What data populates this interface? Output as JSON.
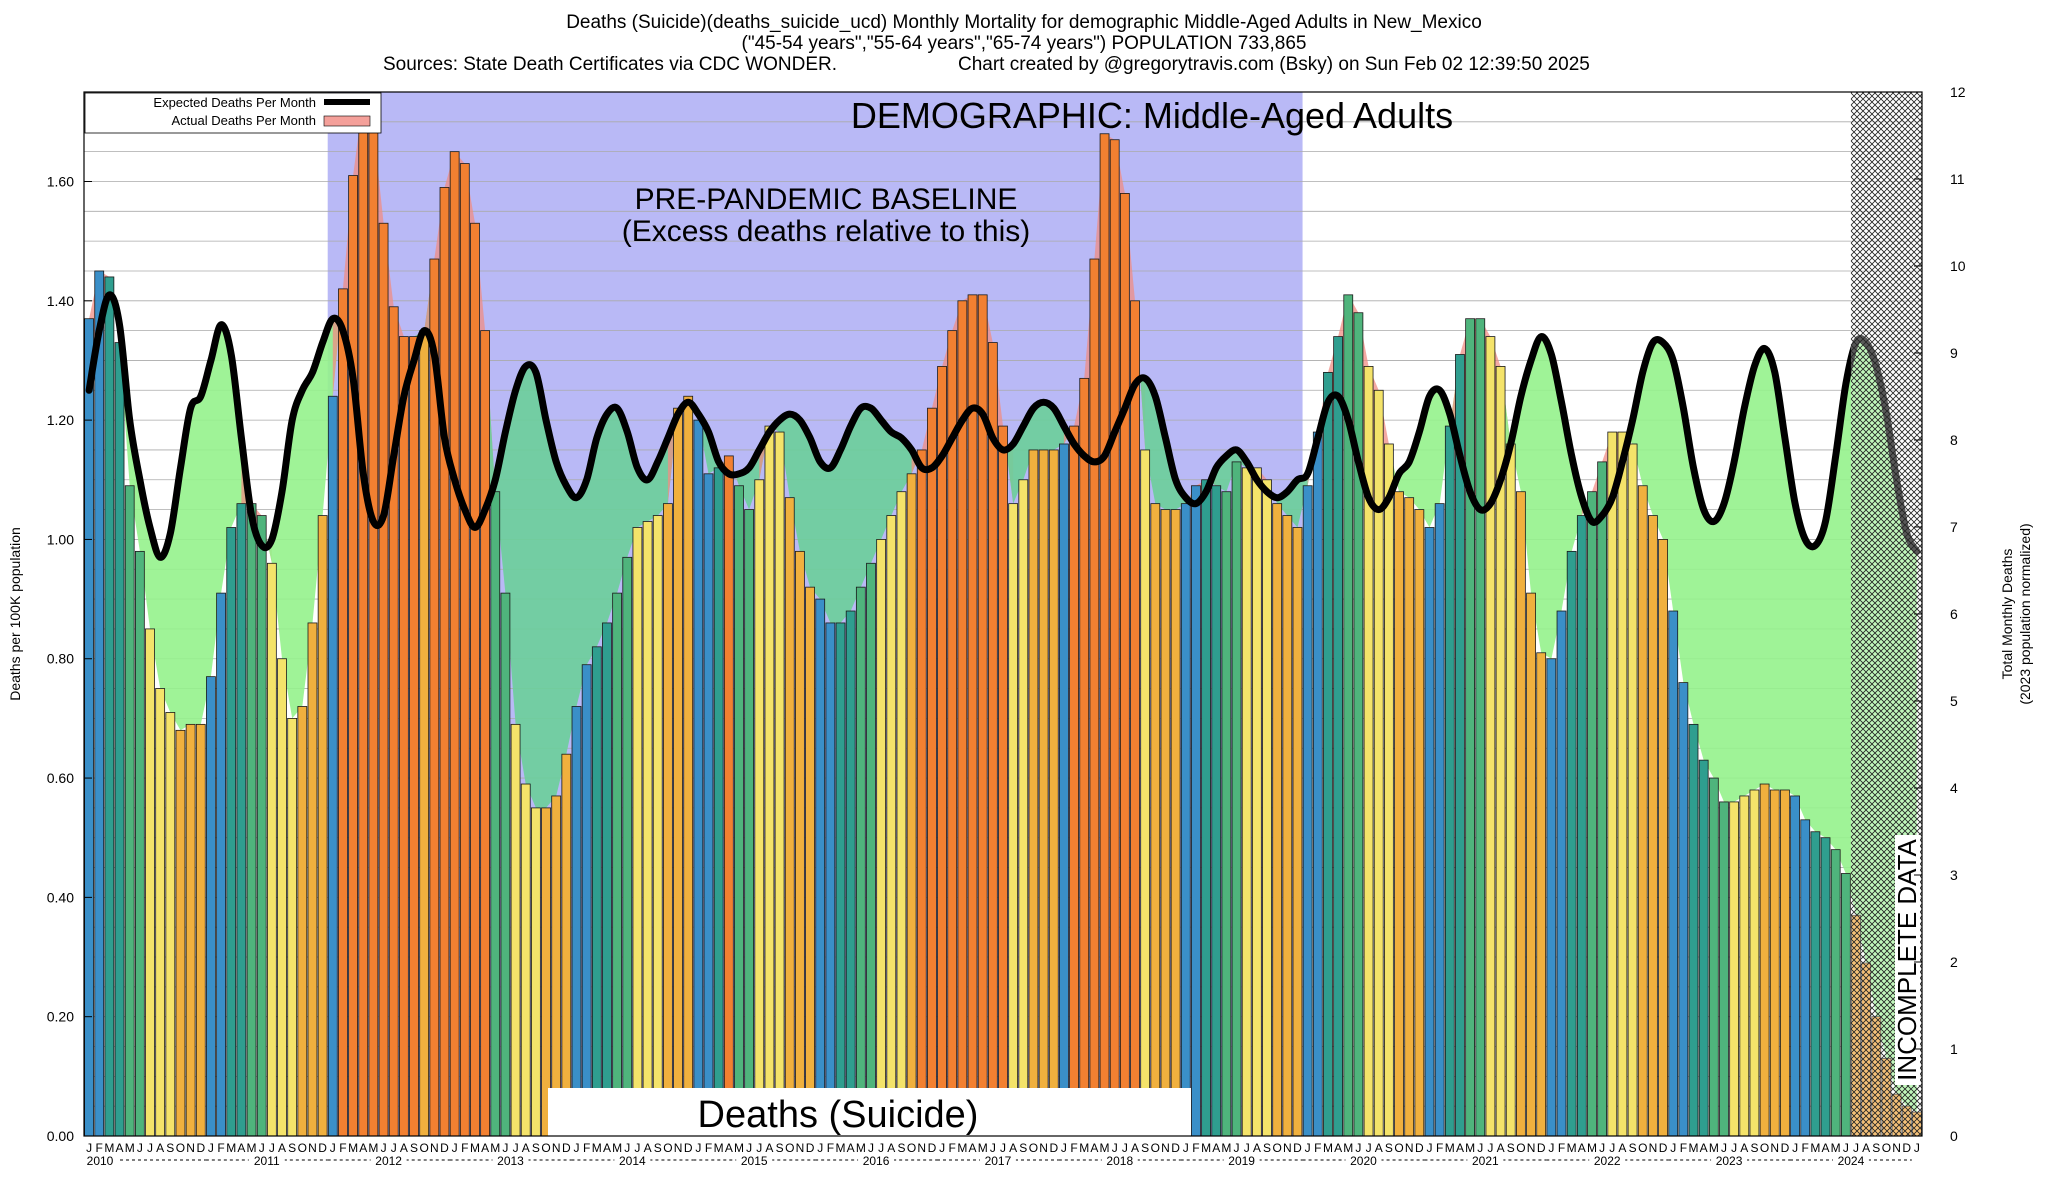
{
  "header": {
    "line1": "Deaths (Suicide)(deaths_suicide_ucd) Monthly Mortality for demographic Middle-Aged Adults in New_Mexico",
    "line2": "(\"45-54 years\",\"55-64 years\",\"65-74 years\") POPULATION 733,865",
    "line3_left": "Sources: State Death Certificates via CDC WONDER.",
    "line3_right": "Chart created by @gregorytravis.com (Bsky) on Sun Feb 02 12:39:50 2025"
  },
  "chart_data": {
    "type": "bar",
    "title": "Deaths (Suicide)(deaths_suicide_ucd) Monthly Mortality for demographic Middle-Aged Adults in New_Mexico",
    "ylabel": "Deaths per 100K population",
    "y2label": "Total Monthly Deaths",
    "y2label_sub": "(2023 population normalized)",
    "ylim": [
      0,
      1.75
    ],
    "y2lim": [
      0,
      12
    ],
    "yticks": [
      "0.00",
      "0.20",
      "0.40",
      "0.60",
      "0.80",
      "1.00",
      "1.20",
      "1.40",
      "1.60"
    ],
    "y2ticks": [
      "0",
      "1",
      "2",
      "3",
      "4",
      "5",
      "6",
      "7",
      "8",
      "9",
      "10",
      "11",
      "12"
    ],
    "month_letters": [
      "J",
      "F",
      "M",
      "A",
      "M",
      "J",
      "J",
      "A",
      "S",
      "O",
      "N",
      "D"
    ],
    "years": [
      "2010",
      "2011",
      "2012",
      "2013",
      "2014",
      "2015",
      "2016",
      "2017",
      "2018",
      "2019",
      "2020",
      "2021",
      "2022",
      "2023",
      "2024"
    ],
    "grid": true,
    "legend_position": "top-left",
    "legend": [
      {
        "label": "Expected Deaths Per Month",
        "color": "#000000"
      },
      {
        "label": "Actual Deaths Per Month",
        "color": "#f4a09a"
      }
    ],
    "annotations": {
      "baseline_title": "DEMOGRAPHIC: Middle-Aged Adults",
      "baseline_text1": "PRE-PANDEMIC BASELINE",
      "baseline_text2": "(Excess deaths relative to this)",
      "cause_label": "Deaths (Suicide)",
      "incomplete_label": "INCOMPLETE DATA"
    },
    "baseline_period": {
      "start": "2012-01",
      "end": "2019-12"
    },
    "incomplete_period": {
      "start": "2024-07",
      "end": "2024-12"
    },
    "series": [
      {
        "name": "Actual Deaths Per Month",
        "values": [
          1.37,
          1.45,
          1.44,
          1.33,
          1.09,
          0.98,
          0.85,
          0.75,
          0.71,
          0.68,
          0.69,
          0.69,
          0.77,
          0.91,
          1.02,
          1.06,
          1.06,
          1.04,
          0.96,
          0.8,
          0.7,
          0.72,
          0.86,
          1.04,
          1.24,
          1.42,
          1.61,
          1.74,
          1.69,
          1.53,
          1.39,
          1.34,
          1.34,
          1.35,
          1.47,
          1.59,
          1.65,
          1.63,
          1.53,
          1.35,
          1.08,
          0.91,
          0.69,
          0.59,
          0.55,
          0.55,
          0.57,
          0.64,
          0.72,
          0.79,
          0.82,
          0.86,
          0.91,
          0.97,
          1.02,
          1.03,
          1.04,
          1.06,
          1.22,
          1.24,
          1.2,
          1.11,
          1.12,
          1.14,
          1.09,
          1.05,
          1.1,
          1.19,
          1.18,
          1.07,
          0.98,
          0.92,
          0.9,
          0.86,
          0.86,
          0.88,
          0.92,
          0.96,
          1.0,
          1.04,
          1.08,
          1.11,
          1.15,
          1.22,
          1.29,
          1.35,
          1.4,
          1.41,
          1.41,
          1.33,
          1.19,
          1.06,
          1.1,
          1.15,
          1.15,
          1.15,
          1.16,
          1.19,
          1.27,
          1.47,
          1.68,
          1.67,
          1.58,
          1.4,
          1.15,
          1.06,
          1.05,
          1.05,
          1.06,
          1.09,
          1.1,
          1.09,
          1.08,
          1.13,
          1.12,
          1.12,
          1.1,
          1.06,
          1.04,
          1.02,
          1.09,
          1.18,
          1.28,
          1.34,
          1.41,
          1.38,
          1.29,
          1.25,
          1.16,
          1.08,
          1.07,
          1.05,
          1.02,
          1.06,
          1.19,
          1.31,
          1.37,
          1.37,
          1.34,
          1.29,
          1.16,
          1.08,
          0.91,
          0.81,
          0.8,
          0.88,
          0.98,
          1.04,
          1.08,
          1.13,
          1.18,
          1.18,
          1.16,
          1.09,
          1.04,
          1.0,
          0.88,
          0.76,
          0.69,
          0.63,
          0.6,
          0.56,
          0.56,
          0.57,
          0.58,
          0.59,
          0.58,
          0.58,
          0.57,
          0.53,
          0.51,
          0.5,
          0.48,
          0.44,
          0.37,
          0.29,
          0.2,
          0.13,
          0.07,
          0.05,
          0.04
        ]
      },
      {
        "name": "Expected Deaths Per Month",
        "values": [
          1.25,
          1.35,
          1.41,
          1.36,
          1.2,
          1.1,
          1.02,
          0.97,
          1.01,
          1.12,
          1.22,
          1.24,
          1.3,
          1.36,
          1.31,
          1.17,
          1.04,
          0.99,
          1.0,
          1.08,
          1.2,
          1.25,
          1.28,
          1.33,
          1.37,
          1.35,
          1.27,
          1.11,
          1.03,
          1.04,
          1.14,
          1.24,
          1.3,
          1.35,
          1.31,
          1.17,
          1.1,
          1.05,
          1.02,
          1.05,
          1.1,
          1.18,
          1.25,
          1.29,
          1.28,
          1.2,
          1.13,
          1.09,
          1.07,
          1.1,
          1.17,
          1.21,
          1.22,
          1.18,
          1.12,
          1.1,
          1.13,
          1.17,
          1.21,
          1.23,
          1.21,
          1.18,
          1.13,
          1.11,
          1.11,
          1.12,
          1.15,
          1.18,
          1.2,
          1.21,
          1.2,
          1.17,
          1.13,
          1.12,
          1.15,
          1.19,
          1.22,
          1.22,
          1.2,
          1.18,
          1.17,
          1.15,
          1.12,
          1.12,
          1.14,
          1.17,
          1.2,
          1.22,
          1.21,
          1.17,
          1.15,
          1.16,
          1.19,
          1.22,
          1.23,
          1.22,
          1.19,
          1.16,
          1.14,
          1.13,
          1.14,
          1.18,
          1.22,
          1.26,
          1.27,
          1.24,
          1.17,
          1.1,
          1.07,
          1.06,
          1.08,
          1.12,
          1.14,
          1.15,
          1.13,
          1.1,
          1.08,
          1.07,
          1.08,
          1.1,
          1.11,
          1.17,
          1.23,
          1.24,
          1.2,
          1.13,
          1.07,
          1.05,
          1.07,
          1.11,
          1.13,
          1.18,
          1.24,
          1.25,
          1.21,
          1.14,
          1.08,
          1.05,
          1.06,
          1.1,
          1.16,
          1.24,
          1.3,
          1.34,
          1.31,
          1.23,
          1.14,
          1.07,
          1.03,
          1.04,
          1.07,
          1.13,
          1.2,
          1.28,
          1.33,
          1.33,
          1.3,
          1.22,
          1.12,
          1.05,
          1.03,
          1.06,
          1.13,
          1.22,
          1.29,
          1.32,
          1.28,
          1.17,
          1.06,
          1.0,
          0.99,
          1.03,
          1.14,
          1.26,
          1.33,
          1.33,
          1.29,
          1.21,
          1.1,
          1.01,
          0.98
        ]
      }
    ]
  }
}
